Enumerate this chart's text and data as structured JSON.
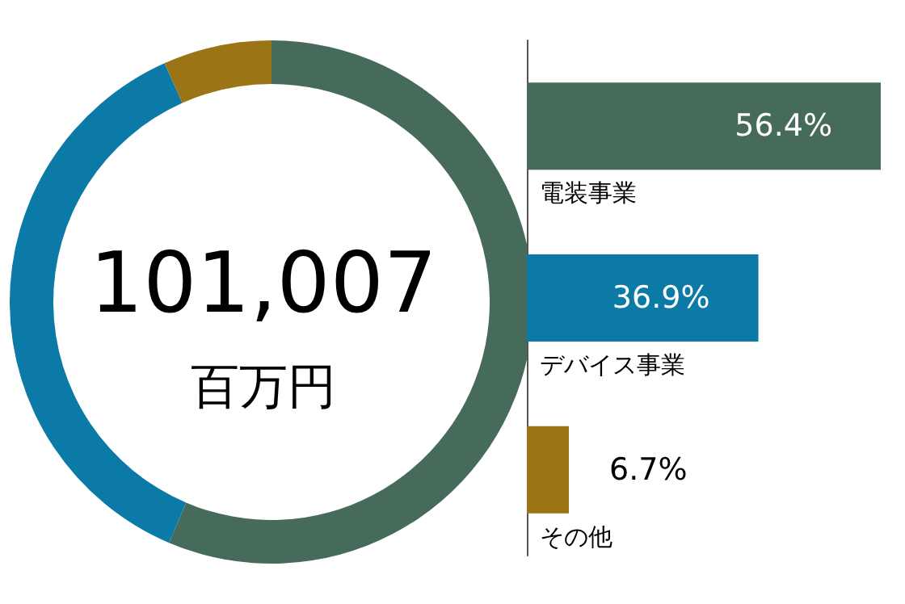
{
  "chart_data": [
    {
      "type": "donut",
      "categories": [
        null,
        null,
        null
      ],
      "values": [
        56.4,
        36.9,
        6.7
      ],
      "colors": [
        "#466b5a",
        "#0b7aa6",
        "#9a7415"
      ],
      "annotations": [
        "101,007",
        "百万円"
      ]
    },
    {
      "type": "bar",
      "orientation": "horizontal",
      "categories": [
        "電装事業",
        "デバイス事業",
        "その他"
      ],
      "values": [
        56.4,
        36.9,
        6.7
      ],
      "colors": [
        "#466b5a",
        "#0b7aa6",
        "#9a7415"
      ],
      "value_labels": [
        "56.4%",
        "36.9%",
        "6.7%"
      ]
    }
  ]
}
